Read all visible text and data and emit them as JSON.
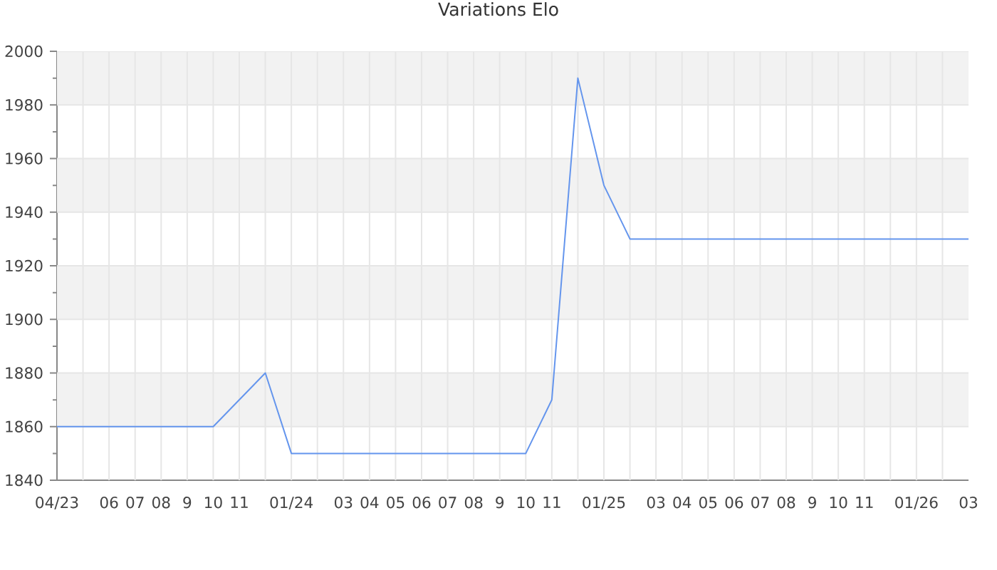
{
  "chart_data": {
    "type": "line",
    "title": "Variations Elo",
    "x": [
      "2023-04",
      "2023-10",
      "2023-12",
      "2024-01",
      "2024-10",
      "2024-11",
      "2024-12",
      "2025-01",
      "2025-02",
      "2026-03"
    ],
    "series": [
      {
        "color": "#6495ed",
        "values": [
          1860,
          1860,
          1880,
          1850,
          1850,
          1870,
          1990,
          1950,
          1930,
          1930
        ]
      }
    ],
    "xlim": [
      "2023-04",
      "2026-03"
    ],
    "xticks": [
      {
        "value": "2023-04",
        "label": "04/23"
      },
      {
        "value": "2023-05",
        "label": null
      },
      {
        "value": "2023-06",
        "label": "06"
      },
      {
        "value": "2023-07",
        "label": "07"
      },
      {
        "value": "2023-08",
        "label": "08"
      },
      {
        "value": "2023-09",
        "label": "9"
      },
      {
        "value": "2023-10",
        "label": "10"
      },
      {
        "value": "2023-11",
        "label": "11"
      },
      {
        "value": "2023-12",
        "label": null
      },
      {
        "value": "2024-01",
        "label": "01/24"
      },
      {
        "value": "2024-02",
        "label": null
      },
      {
        "value": "2024-03",
        "label": "03"
      },
      {
        "value": "2024-04",
        "label": "04"
      },
      {
        "value": "2024-05",
        "label": "05"
      },
      {
        "value": "2024-06",
        "label": "06"
      },
      {
        "value": "2024-07",
        "label": "07"
      },
      {
        "value": "2024-08",
        "label": "08"
      },
      {
        "value": "2024-09",
        "label": "9"
      },
      {
        "value": "2024-10",
        "label": "10"
      },
      {
        "value": "2024-11",
        "label": "11"
      },
      {
        "value": "2024-12",
        "label": null
      },
      {
        "value": "2025-01",
        "label": "01/25"
      },
      {
        "value": "2025-02",
        "label": null
      },
      {
        "value": "2025-03",
        "label": "03"
      },
      {
        "value": "2025-04",
        "label": "04"
      },
      {
        "value": "2025-05",
        "label": "05"
      },
      {
        "value": "2025-06",
        "label": "06"
      },
      {
        "value": "2025-07",
        "label": "07"
      },
      {
        "value": "2025-08",
        "label": "08"
      },
      {
        "value": "2025-09",
        "label": "9"
      },
      {
        "value": "2025-10",
        "label": "10"
      },
      {
        "value": "2025-11",
        "label": "11"
      },
      {
        "value": "2025-12",
        "label": null
      },
      {
        "value": "2026-01",
        "label": "01/26"
      },
      {
        "value": "2026-02",
        "label": null
      },
      {
        "value": "2026-03",
        "label": "03"
      }
    ],
    "ylim": [
      1840,
      2000
    ],
    "yticks": [
      {
        "value": 1840,
        "label": "1840"
      },
      {
        "value": 1850,
        "label": null
      },
      {
        "value": 1860,
        "label": "1860"
      },
      {
        "value": 1870,
        "label": null
      },
      {
        "value": 1880,
        "label": "1880"
      },
      {
        "value": 1890,
        "label": null
      },
      {
        "value": 1900,
        "label": "1900"
      },
      {
        "value": 1910,
        "label": null
      },
      {
        "value": 1920,
        "label": "1920"
      },
      {
        "value": 1930,
        "label": null
      },
      {
        "value": 1940,
        "label": "1940"
      },
      {
        "value": 1950,
        "label": null
      },
      {
        "value": 1960,
        "label": "1960"
      },
      {
        "value": 1970,
        "label": null
      },
      {
        "value": 1980,
        "label": "1980"
      },
      {
        "value": 1990,
        "label": null
      },
      {
        "value": 2000,
        "label": "2000"
      }
    ],
    "grid": true,
    "bands": [
      {
        "axis": "y",
        "from": 1860,
        "to": 1880,
        "color": "#f2f2f2"
      },
      {
        "axis": "y",
        "from": 1900,
        "to": 1920,
        "color": "#f2f2f2"
      },
      {
        "axis": "y",
        "from": 1940,
        "to": 1960,
        "color": "#f2f2f2"
      },
      {
        "axis": "y",
        "from": 1980,
        "to": 2000,
        "color": "#f2f2f2"
      }
    ]
  }
}
